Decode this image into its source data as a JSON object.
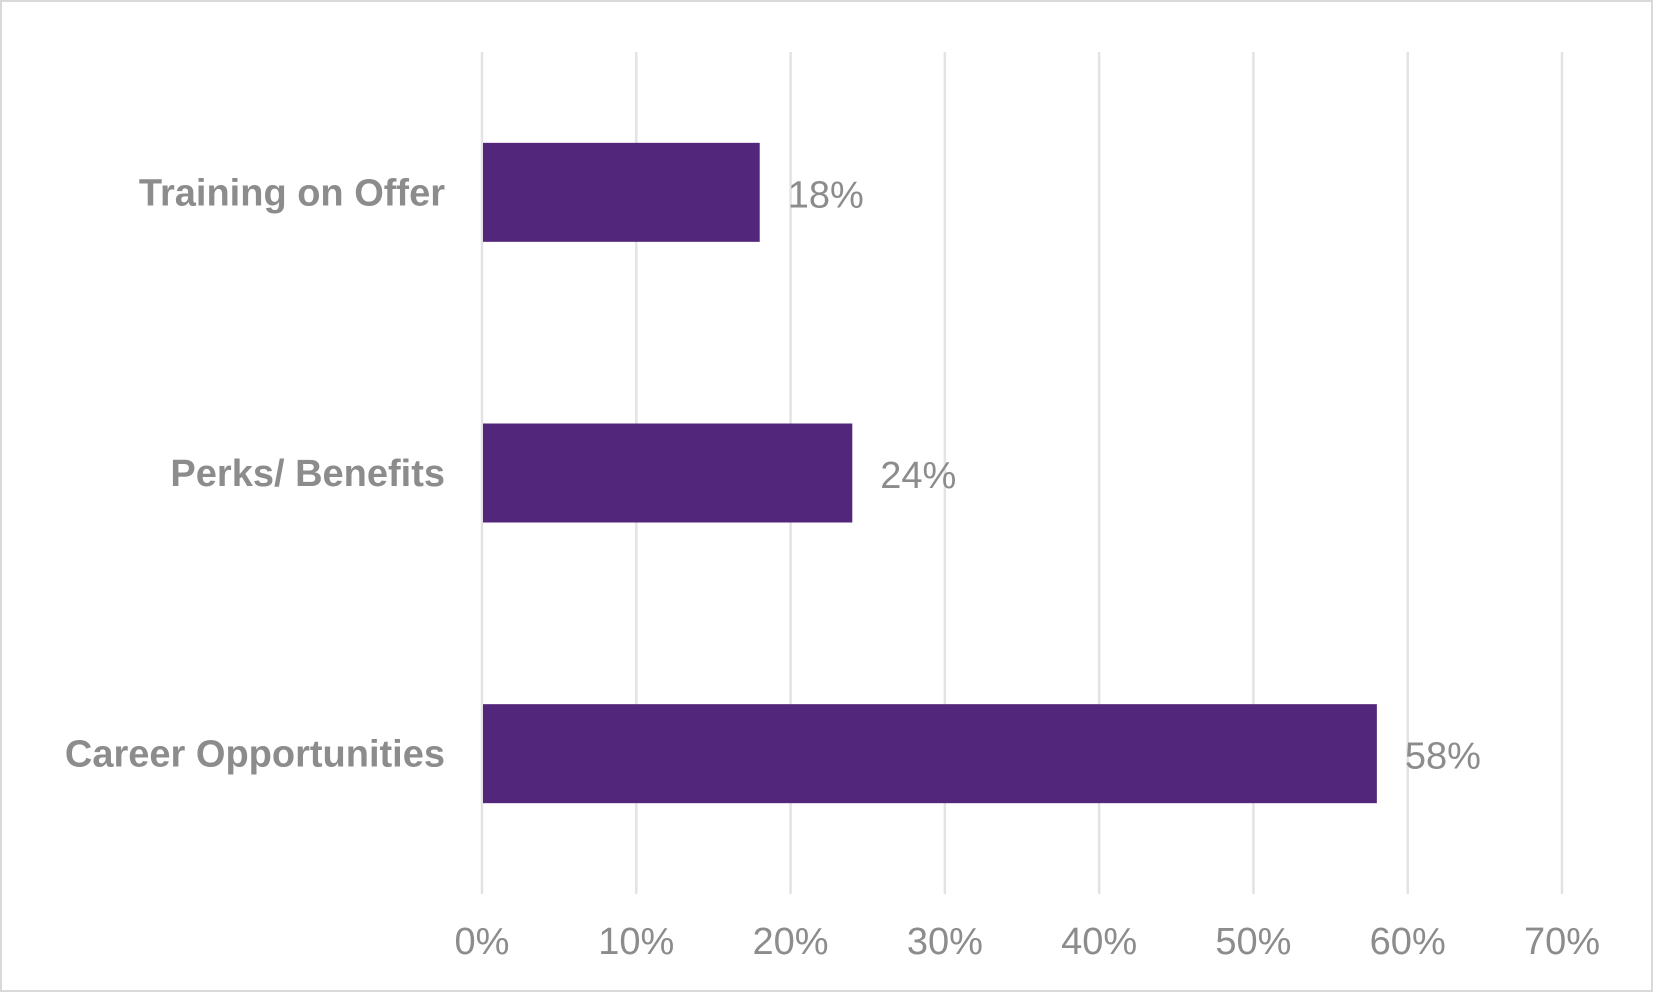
{
  "chart_data": {
    "type": "bar",
    "orientation": "horizontal",
    "categories": [
      "Career Opportunities",
      "Perks/ Benefits",
      "Training on Offer"
    ],
    "values": [
      0.58,
      0.24,
      0.18
    ],
    "data_labels": [
      "58%",
      "24%",
      "18%"
    ],
    "xlim": [
      0,
      0.7
    ],
    "x_ticks": [
      0,
      0.1,
      0.2,
      0.3,
      0.4,
      0.5,
      0.6,
      0.7
    ],
    "x_tick_labels": [
      "0%",
      "10%",
      "20%",
      "30%",
      "40%",
      "50%",
      "60%",
      "70%"
    ],
    "grid": true,
    "legend": "none",
    "colors": {
      "bar": "#52267A",
      "text": "#8C8C8C",
      "grid": "#E3E3E3",
      "border": "#D9D9D9"
    }
  }
}
